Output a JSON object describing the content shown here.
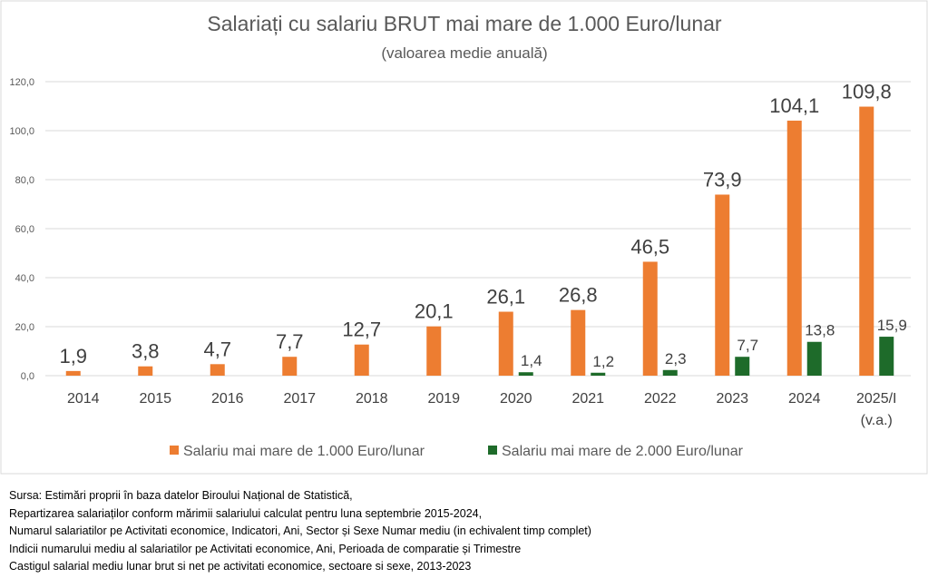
{
  "chart_data": {
    "type": "bar",
    "title": "Salariați cu salariu BRUT mai mare de 1.000 Euro/lunar",
    "subtitle": "(valoarea medie anuală)",
    "categories": [
      "2014",
      "2015",
      "2016",
      "2017",
      "2018",
      "2019",
      "2020",
      "2021",
      "2022",
      "2023",
      "2024",
      "2025/I"
    ],
    "category_sublabels": {
      "2025/I": "(v.a.)"
    },
    "series": [
      {
        "name": "Salariu mai mare de 1.000 Euro/lunar",
        "color": "#ED7D31",
        "values": [
          1.9,
          3.8,
          4.7,
          7.7,
          12.7,
          20.1,
          26.1,
          26.8,
          46.5,
          73.9,
          104.1,
          109.8
        ],
        "labels": [
          "1,9",
          "3,8",
          "4,7",
          "7,7",
          "12,7",
          "20,1",
          "26,1",
          "26,8",
          "46,5",
          "73,9",
          "104,1",
          "109,8"
        ]
      },
      {
        "name": "Salariu mai mare de 2.000 Euro/lunar",
        "color": "#1E6B2A",
        "values": [
          null,
          null,
          null,
          null,
          null,
          null,
          1.4,
          1.2,
          2.3,
          7.7,
          13.8,
          15.9
        ],
        "labels": [
          null,
          null,
          null,
          null,
          null,
          null,
          "1,4",
          "1,2",
          "2,3",
          "7,7",
          "13,8",
          "15,9"
        ]
      }
    ],
    "ylim": [
      0,
      120
    ],
    "yticks": [
      0,
      20,
      40,
      60,
      80,
      100,
      120
    ],
    "ytick_labels": [
      "0,0",
      "20,0",
      "40,0",
      "60,0",
      "80,0",
      "100,0",
      "120,0"
    ],
    "grid": true,
    "legend": "bottom"
  },
  "sources": [
    "Sursa: Estimări proprii în baza datelor Biroului Național de Statistică,",
    "Repartizarea salariaților conform mărimii salariului calculat pentru luna septembrie 2015-2024,",
    "Numarul salariatilor pe Activitati economice, Indicatori, Ani, Sector și Sexe Numar mediu (in echivalent timp complet)",
    "Indicii numarului mediu al salariatilor pe Activitati economice, Ani, Perioada de comparatie și Trimestre",
    "Castigul salarial mediu lunar brut si net pe activitati economice, sectoare si sexe, 2013-2023"
  ]
}
